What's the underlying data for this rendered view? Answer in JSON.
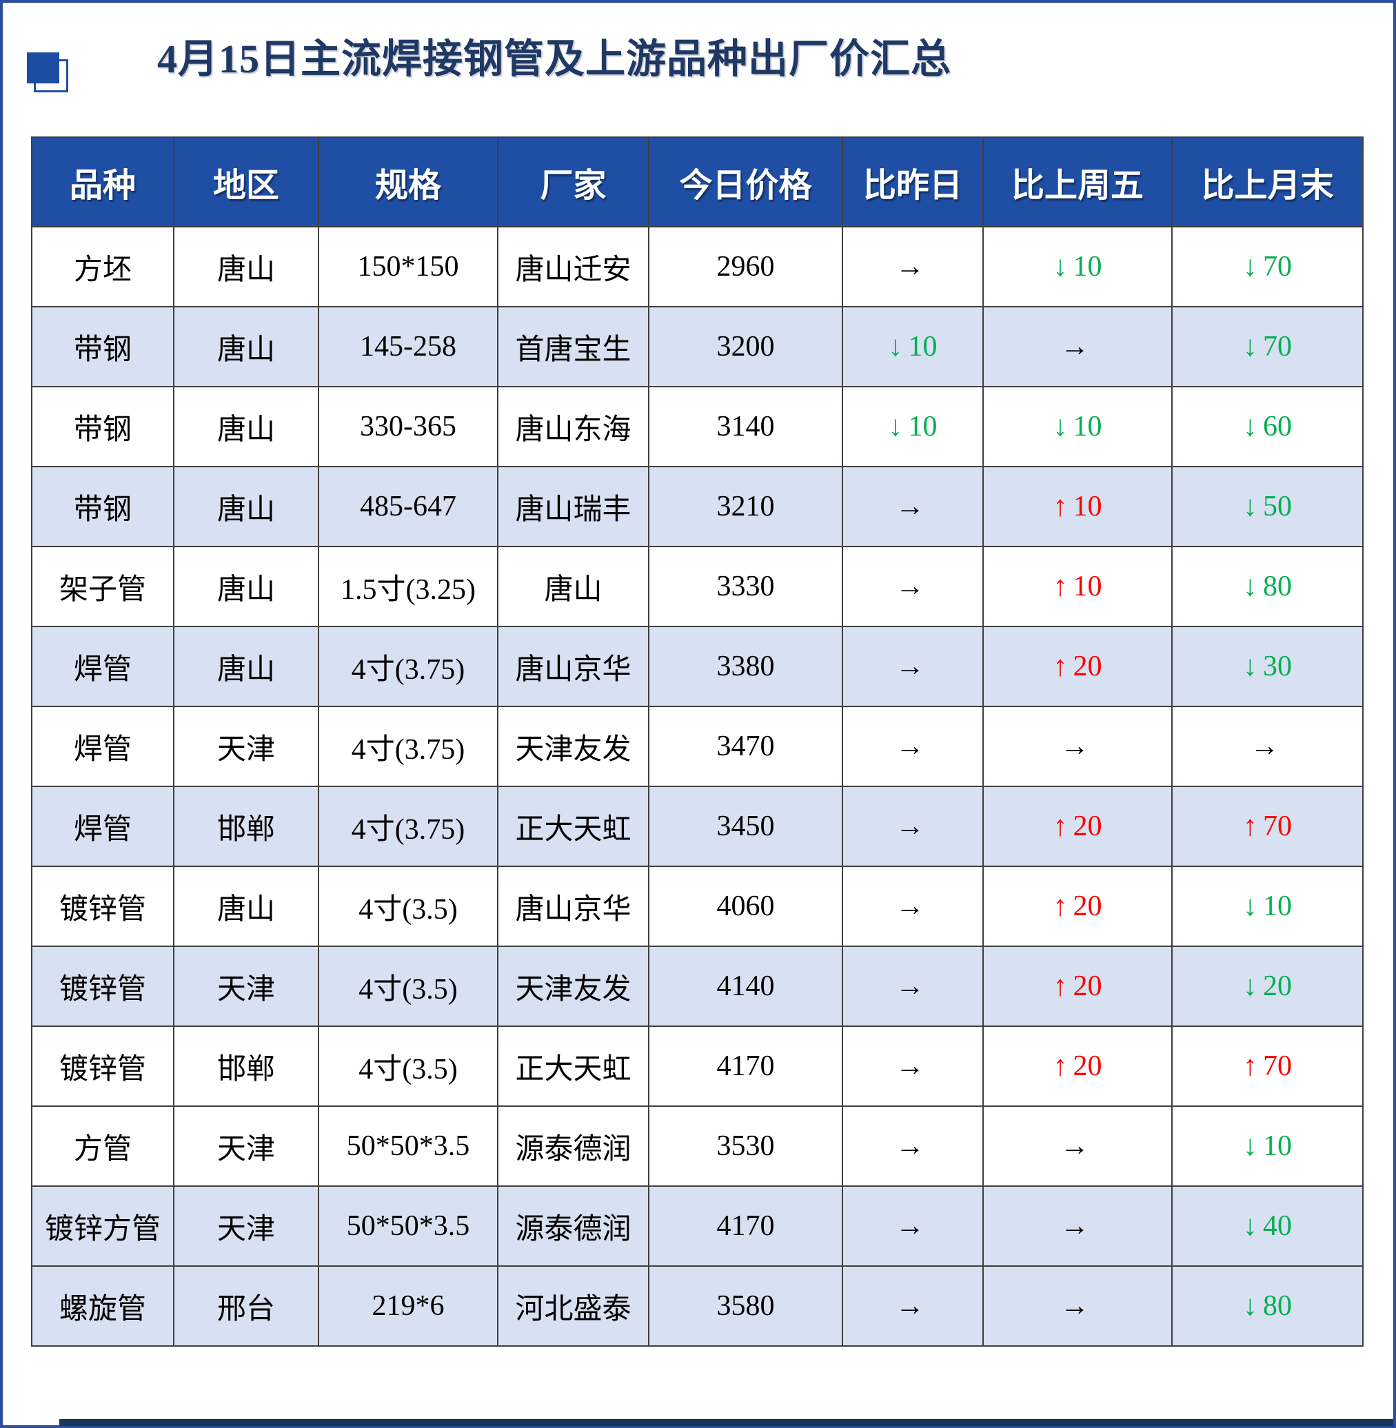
{
  "page": {
    "title": "4月15日主流焊接钢管及上游品种出厂价汇总"
  },
  "colors": {
    "header_bg": "#1F4FA4",
    "shaded_row_bg": "#D8E1F1",
    "up_red": "#FF0000",
    "down_green": "#00B050",
    "title_navy": "#1F3864"
  },
  "arrows": {
    "up": "↑",
    "down": "↓",
    "flat": "→"
  },
  "table": {
    "columns": [
      "品种",
      "地区",
      "规格",
      "厂家",
      "今日价格",
      "比昨日",
      "比上周五",
      "比上月末"
    ],
    "rows": [
      {
        "variety": "方坯",
        "region": "唐山",
        "spec": "150*150",
        "factory": "唐山迁安",
        "price": "2960",
        "vs_yesterday": {
          "dir": "flat"
        },
        "vs_last_friday": {
          "dir": "down",
          "value": "10"
        },
        "vs_month_end": {
          "dir": "down",
          "value": "70"
        },
        "shaded": false
      },
      {
        "variety": "带钢",
        "region": "唐山",
        "spec": "145-258",
        "factory": "首唐宝生",
        "price": "3200",
        "vs_yesterday": {
          "dir": "down",
          "value": "10"
        },
        "vs_last_friday": {
          "dir": "flat"
        },
        "vs_month_end": {
          "dir": "down",
          "value": "70"
        },
        "shaded": true
      },
      {
        "variety": "带钢",
        "region": "唐山",
        "spec": "330-365",
        "factory": "唐山东海",
        "price": "3140",
        "vs_yesterday": {
          "dir": "down",
          "value": "10"
        },
        "vs_last_friday": {
          "dir": "down",
          "value": "10"
        },
        "vs_month_end": {
          "dir": "down",
          "value": "60"
        },
        "shaded": false
      },
      {
        "variety": "带钢",
        "region": "唐山",
        "spec": "485-647",
        "factory": "唐山瑞丰",
        "price": "3210",
        "vs_yesterday": {
          "dir": "flat"
        },
        "vs_last_friday": {
          "dir": "up",
          "value": "10"
        },
        "vs_month_end": {
          "dir": "down",
          "value": "50"
        },
        "shaded": true
      },
      {
        "variety": "架子管",
        "region": "唐山",
        "spec": "1.5寸(3.25)",
        "factory": "唐山",
        "price": "3330",
        "vs_yesterday": {
          "dir": "flat"
        },
        "vs_last_friday": {
          "dir": "up",
          "value": "10"
        },
        "vs_month_end": {
          "dir": "down",
          "value": "80"
        },
        "shaded": false
      },
      {
        "variety": "焊管",
        "region": "唐山",
        "spec": "4寸(3.75)",
        "factory": "唐山京华",
        "price": "3380",
        "vs_yesterday": {
          "dir": "flat"
        },
        "vs_last_friday": {
          "dir": "up",
          "value": "20"
        },
        "vs_month_end": {
          "dir": "down",
          "value": "30"
        },
        "shaded": true
      },
      {
        "variety": "焊管",
        "region": "天津",
        "spec": "4寸(3.75)",
        "factory": "天津友发",
        "price": "3470",
        "vs_yesterday": {
          "dir": "flat"
        },
        "vs_last_friday": {
          "dir": "flat"
        },
        "vs_month_end": {
          "dir": "flat"
        },
        "shaded": false
      },
      {
        "variety": "焊管",
        "region": "邯郸",
        "spec": "4寸(3.75)",
        "factory": "正大天虹",
        "price": "3450",
        "vs_yesterday": {
          "dir": "flat"
        },
        "vs_last_friday": {
          "dir": "up",
          "value": "20"
        },
        "vs_month_end": {
          "dir": "up",
          "value": "70"
        },
        "shaded": true
      },
      {
        "variety": "镀锌管",
        "region": "唐山",
        "spec": "4寸(3.5)",
        "factory": "唐山京华",
        "price": "4060",
        "vs_yesterday": {
          "dir": "flat"
        },
        "vs_last_friday": {
          "dir": "up",
          "value": "20"
        },
        "vs_month_end": {
          "dir": "down",
          "value": "10"
        },
        "shaded": false
      },
      {
        "variety": "镀锌管",
        "region": "天津",
        "spec": "4寸(3.5)",
        "factory": "天津友发",
        "price": "4140",
        "vs_yesterday": {
          "dir": "flat"
        },
        "vs_last_friday": {
          "dir": "up",
          "value": "20"
        },
        "vs_month_end": {
          "dir": "down",
          "value": "20"
        },
        "shaded": true
      },
      {
        "variety": "镀锌管",
        "region": "邯郸",
        "spec": "4寸(3.5)",
        "factory": "正大天虹",
        "price": "4170",
        "vs_yesterday": {
          "dir": "flat"
        },
        "vs_last_friday": {
          "dir": "up",
          "value": "20"
        },
        "vs_month_end": {
          "dir": "up",
          "value": "70"
        },
        "shaded": false
      },
      {
        "variety": "方管",
        "region": "天津",
        "spec": "50*50*3.5",
        "factory": "源泰德润",
        "price": "3530",
        "vs_yesterday": {
          "dir": "flat"
        },
        "vs_last_friday": {
          "dir": "flat"
        },
        "vs_month_end": {
          "dir": "down",
          "value": "10"
        },
        "shaded": false
      },
      {
        "variety": "镀锌方管",
        "region": "天津",
        "spec": "50*50*3.5",
        "factory": "源泰德润",
        "price": "4170",
        "vs_yesterday": {
          "dir": "flat"
        },
        "vs_last_friday": {
          "dir": "flat"
        },
        "vs_month_end": {
          "dir": "down",
          "value": "40"
        },
        "shaded": true
      },
      {
        "variety": "螺旋管",
        "region": "邢台",
        "spec": "219*6",
        "factory": "河北盛泰",
        "price": "3580",
        "vs_yesterday": {
          "dir": "flat"
        },
        "vs_last_friday": {
          "dir": "flat"
        },
        "vs_month_end": {
          "dir": "down",
          "value": "80"
        },
        "shaded": true
      }
    ]
  }
}
